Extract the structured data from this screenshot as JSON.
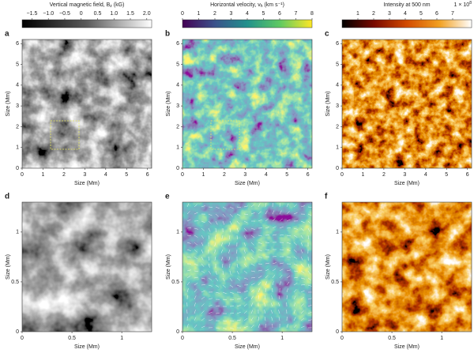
{
  "chart_data": [
    {
      "type": "image",
      "panel": "a",
      "xlabel": "Size (Mm)",
      "ylabel": "Size (Mm)",
      "xlim": [
        0,
        6.2
      ],
      "ylim": [
        0,
        6.2
      ],
      "xticks": [
        0,
        1,
        2,
        3,
        4,
        5,
        6
      ],
      "yticks": [
        0,
        1,
        2,
        3,
        4,
        5,
        6
      ],
      "colormap": [
        "#000000",
        "#5a5a5a",
        "#ffffff"
      ],
      "colorbar": {
        "label": "Vertical magnetic field, B",
        "label_sub": "z",
        "label_end": " (kG)",
        "clim": [
          -1.8,
          2.15
        ],
        "ticks": [
          {
            "value": -1.5,
            "label": "−1.5"
          },
          {
            "value": -1.0,
            "label": "−1.0"
          },
          {
            "value": -0.5,
            "label": "−0.5"
          },
          0,
          0.5,
          {
            "value": 1.0,
            "label": "1.0"
          },
          1.5,
          {
            "value": 2.0,
            "label": "2.0"
          }
        ]
      }
    },
    {
      "type": "image",
      "panel": "b",
      "xlabel": "Size (Mm)",
      "ylabel": "Size (Mm)",
      "xlim": [
        0,
        6.2
      ],
      "ylim": [
        0,
        6.2
      ],
      "xticks": [
        0,
        1,
        2,
        3,
        4,
        5,
        6
      ],
      "yticks": [
        0,
        1,
        2,
        3,
        4,
        5,
        6
      ],
      "colormap": [
        "#440154",
        "#3b528b",
        "#21918c",
        "#5ec962",
        "#fde725"
      ],
      "colorbar": {
        "label": "Horizontal velocity, v",
        "label_sub": "h",
        "label_end": " (km s⁻¹)",
        "clim": [
          0,
          8
        ],
        "ticks": [
          0,
          1,
          2,
          3,
          4,
          5,
          6,
          7,
          8
        ]
      }
    },
    {
      "type": "image",
      "panel": "c",
      "xlabel": "Size (Mm)",
      "ylabel": "Size (Mm)",
      "xlim": [
        0,
        6.2
      ],
      "ylim": [
        0,
        6.2
      ],
      "xticks": [
        0,
        1,
        2,
        3,
        4,
        5,
        6
      ],
      "yticks": [
        0,
        1,
        2,
        3,
        4,
        5,
        6
      ],
      "colormap": [
        "#000000",
        "#7a0a00",
        "#d24a00",
        "#f2a020",
        "#ffffff"
      ],
      "colorbar": {
        "label": "Intensity at 500 nm",
        "scale": "1 × 10",
        "scale_sup": "8",
        "clim": [
          0,
          8.2
        ],
        "ticks": [
          1,
          2,
          3,
          4,
          5,
          6,
          7
        ]
      }
    },
    {
      "type": "image",
      "panel": "d",
      "xlabel": "Size (Mm)",
      "ylabel": "Size (Mm)",
      "xlim": [
        0,
        1.3
      ],
      "ylim": [
        0,
        1.3
      ],
      "xticks": [
        0,
        0.5,
        1
      ],
      "yticks": [
        0,
        0.5,
        1
      ],
      "colormap": [
        "#000000",
        "#5a5a5a",
        "#ffffff"
      ]
    },
    {
      "type": "image",
      "panel": "e",
      "xlabel": "Size (Mm)",
      "ylabel": "Size (Mm)",
      "xlim": [
        0,
        1.3
      ],
      "ylim": [
        0,
        1.3
      ],
      "xticks": [
        0,
        0.5,
        1
      ],
      "yticks": [
        0,
        0.5,
        1
      ],
      "colormap": [
        "#440154",
        "#3b528b",
        "#21918c",
        "#5ec962",
        "#fde725"
      ]
    },
    {
      "type": "image",
      "panel": "f",
      "xlabel": "Size (Mm)",
      "ylabel": "Size (Mm)",
      "xlim": [
        0,
        1.3
      ],
      "ylim": [
        0,
        1.3
      ],
      "xticks": [
        0,
        0.5,
        1
      ],
      "yticks": [
        0,
        0.5,
        1
      ],
      "colormap": [
        "#000000",
        "#7a0a00",
        "#d24a00",
        "#f2a020",
        "#ffffff"
      ]
    }
  ]
}
